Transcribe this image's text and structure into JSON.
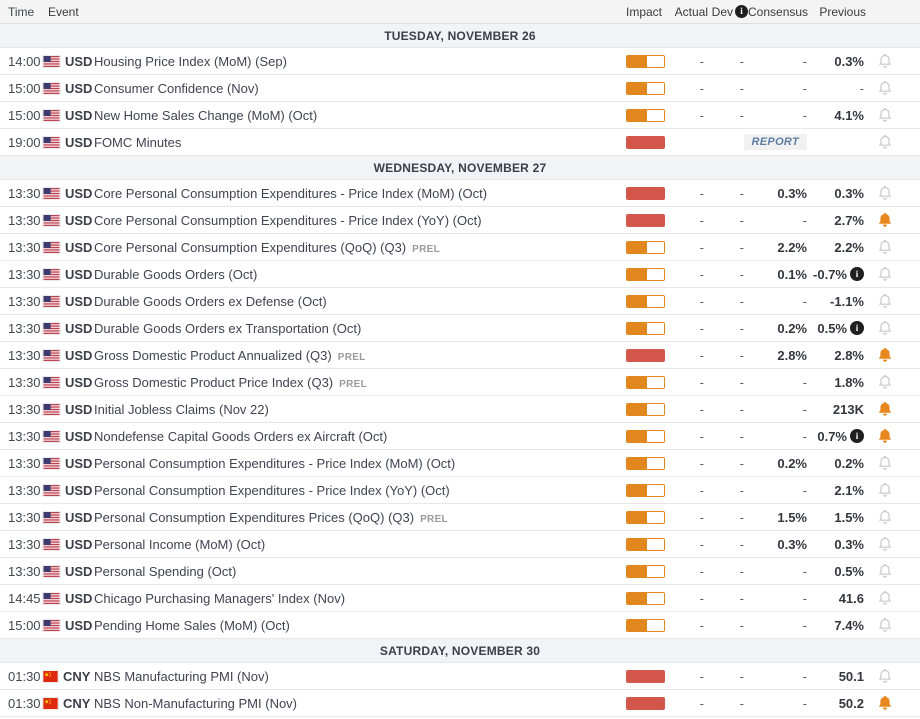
{
  "labels": {
    "report": "REPORT"
  },
  "icons": {
    "info_glyph": "i"
  },
  "colors": {
    "impact_medium": "#E2871D",
    "impact_high": "#D2574A",
    "bell_active": "#E8871E",
    "bell_inactive": "#C9C9C9",
    "section_bg": "#F2F3F6",
    "header_bg": "#F4F4F4",
    "report_color": "#5D7FA3"
  },
  "table": {
    "headers": {
      "time": "Time",
      "event": "Event",
      "impact": "Impact",
      "actual": "Actual",
      "dev": "Dev",
      "consensus": "Consensus",
      "previous": "Previous"
    },
    "sections": [
      {
        "title": "TUESDAY, NOVEMBER 26",
        "rows": [
          {
            "time": "14:00",
            "flag": "us",
            "currency": "USD",
            "event": "Housing Price Index (MoM) (Sep)",
            "suffix": "",
            "impact": "medium",
            "actual": "-",
            "dev": "-",
            "consensus": "-",
            "previous": "0.3%",
            "previous_info": false,
            "bell": "inactive",
            "report": false
          },
          {
            "time": "15:00",
            "flag": "us",
            "currency": "USD",
            "event": "Consumer Confidence (Nov)",
            "suffix": "",
            "impact": "medium",
            "actual": "-",
            "dev": "-",
            "consensus": "-",
            "previous": "-",
            "previous_info": false,
            "bell": "inactive",
            "report": false
          },
          {
            "time": "15:00",
            "flag": "us",
            "currency": "USD",
            "event": "New Home Sales Change (MoM) (Oct)",
            "suffix": "",
            "impact": "medium",
            "actual": "-",
            "dev": "-",
            "consensus": "-",
            "previous": "4.1%",
            "previous_info": false,
            "bell": "inactive",
            "report": false
          },
          {
            "time": "19:00",
            "flag": "us",
            "currency": "USD",
            "event": "FOMC Minutes",
            "suffix": "",
            "impact": "high",
            "actual": "",
            "dev": "",
            "consensus": "",
            "previous": "",
            "previous_info": false,
            "bell": "inactive",
            "report": true
          }
        ]
      },
      {
        "title": "WEDNESDAY, NOVEMBER 27",
        "rows": [
          {
            "time": "13:30",
            "flag": "us",
            "currency": "USD",
            "event": "Core Personal Consumption Expenditures - Price Index (MoM) (Oct)",
            "suffix": "",
            "impact": "high",
            "actual": "-",
            "dev": "-",
            "consensus": "0.3%",
            "previous": "0.3%",
            "previous_info": false,
            "bell": "inactive",
            "report": false
          },
          {
            "time": "13:30",
            "flag": "us",
            "currency": "USD",
            "event": "Core Personal Consumption Expenditures - Price Index (YoY) (Oct)",
            "suffix": "",
            "impact": "high",
            "actual": "-",
            "dev": "-",
            "consensus": "-",
            "previous": "2.7%",
            "previous_info": false,
            "bell": "active",
            "report": false
          },
          {
            "time": "13:30",
            "flag": "us",
            "currency": "USD",
            "event": "Core Personal Consumption Expenditures (QoQ) (Q3)",
            "suffix": "PREL",
            "impact": "medium",
            "actual": "-",
            "dev": "-",
            "consensus": "2.2%",
            "previous": "2.2%",
            "previous_info": false,
            "bell": "inactive",
            "report": false
          },
          {
            "time": "13:30",
            "flag": "us",
            "currency": "USD",
            "event": "Durable Goods Orders (Oct)",
            "suffix": "",
            "impact": "medium",
            "actual": "-",
            "dev": "-",
            "consensus": "0.1%",
            "previous": "-0.7%",
            "previous_info": true,
            "bell": "inactive",
            "report": false
          },
          {
            "time": "13:30",
            "flag": "us",
            "currency": "USD",
            "event": "Durable Goods Orders ex Defense (Oct)",
            "suffix": "",
            "impact": "medium",
            "actual": "-",
            "dev": "-",
            "consensus": "-",
            "previous": "-1.1%",
            "previous_info": false,
            "bell": "inactive",
            "report": false
          },
          {
            "time": "13:30",
            "flag": "us",
            "currency": "USD",
            "event": "Durable Goods Orders ex Transportation (Oct)",
            "suffix": "",
            "impact": "medium",
            "actual": "-",
            "dev": "-",
            "consensus": "0.2%",
            "previous": "0.5%",
            "previous_info": true,
            "bell": "inactive",
            "report": false
          },
          {
            "time": "13:30",
            "flag": "us",
            "currency": "USD",
            "event": "Gross Domestic Product Annualized (Q3)",
            "suffix": "PREL",
            "impact": "high",
            "actual": "-",
            "dev": "-",
            "consensus": "2.8%",
            "previous": "2.8%",
            "previous_info": false,
            "bell": "active",
            "report": false
          },
          {
            "time": "13:30",
            "flag": "us",
            "currency": "USD",
            "event": "Gross Domestic Product Price Index (Q3)",
            "suffix": "PREL",
            "impact": "medium",
            "actual": "-",
            "dev": "-",
            "consensus": "-",
            "previous": "1.8%",
            "previous_info": false,
            "bell": "inactive",
            "report": false
          },
          {
            "time": "13:30",
            "flag": "us",
            "currency": "USD",
            "event": "Initial Jobless Claims (Nov 22)",
            "suffix": "",
            "impact": "medium",
            "actual": "-",
            "dev": "-",
            "consensus": "-",
            "previous": "213K",
            "previous_info": false,
            "bell": "active",
            "report": false
          },
          {
            "time": "13:30",
            "flag": "us",
            "currency": "USD",
            "event": "Nondefense Capital Goods Orders ex Aircraft (Oct)",
            "suffix": "",
            "impact": "medium",
            "actual": "-",
            "dev": "-",
            "consensus": "-",
            "previous": "0.7%",
            "previous_info": true,
            "bell": "active",
            "report": false
          },
          {
            "time": "13:30",
            "flag": "us",
            "currency": "USD",
            "event": "Personal Consumption Expenditures - Price Index (MoM) (Oct)",
            "suffix": "",
            "impact": "medium",
            "actual": "-",
            "dev": "-",
            "consensus": "0.2%",
            "previous": "0.2%",
            "previous_info": false,
            "bell": "inactive",
            "report": false
          },
          {
            "time": "13:30",
            "flag": "us",
            "currency": "USD",
            "event": "Personal Consumption Expenditures - Price Index (YoY) (Oct)",
            "suffix": "",
            "impact": "medium",
            "actual": "-",
            "dev": "-",
            "consensus": "-",
            "previous": "2.1%",
            "previous_info": false,
            "bell": "inactive",
            "report": false
          },
          {
            "time": "13:30",
            "flag": "us",
            "currency": "USD",
            "event": "Personal Consumption Expenditures Prices (QoQ) (Q3)",
            "suffix": "PREL",
            "impact": "medium",
            "actual": "-",
            "dev": "-",
            "consensus": "1.5%",
            "previous": "1.5%",
            "previous_info": false,
            "bell": "inactive",
            "report": false
          },
          {
            "time": "13:30",
            "flag": "us",
            "currency": "USD",
            "event": "Personal Income (MoM) (Oct)",
            "suffix": "",
            "impact": "medium",
            "actual": "-",
            "dev": "-",
            "consensus": "0.3%",
            "previous": "0.3%",
            "previous_info": false,
            "bell": "inactive",
            "report": false
          },
          {
            "time": "13:30",
            "flag": "us",
            "currency": "USD",
            "event": "Personal Spending (Oct)",
            "suffix": "",
            "impact": "medium",
            "actual": "-",
            "dev": "-",
            "consensus": "-",
            "previous": "0.5%",
            "previous_info": false,
            "bell": "inactive",
            "report": false
          },
          {
            "time": "14:45",
            "flag": "us",
            "currency": "USD",
            "event": "Chicago Purchasing Managers' Index (Nov)",
            "suffix": "",
            "impact": "medium",
            "actual": "-",
            "dev": "-",
            "consensus": "-",
            "previous": "41.6",
            "previous_info": false,
            "bell": "inactive",
            "report": false
          },
          {
            "time": "15:00",
            "flag": "us",
            "currency": "USD",
            "event": "Pending Home Sales (MoM) (Oct)",
            "suffix": "",
            "impact": "medium",
            "actual": "-",
            "dev": "-",
            "consensus": "-",
            "previous": "7.4%",
            "previous_info": false,
            "bell": "inactive",
            "report": false
          }
        ]
      },
      {
        "title": "SATURDAY, NOVEMBER 30",
        "rows": [
          {
            "time": "01:30",
            "flag": "cn",
            "currency": "CNY",
            "event": "NBS Manufacturing PMI (Nov)",
            "suffix": "",
            "impact": "high",
            "actual": "-",
            "dev": "-",
            "consensus": "-",
            "previous": "50.1",
            "previous_info": false,
            "bell": "inactive",
            "report": false
          },
          {
            "time": "01:30",
            "flag": "cn",
            "currency": "CNY",
            "event": "NBS Non-Manufacturing PMI (Nov)",
            "suffix": "",
            "impact": "high",
            "actual": "-",
            "dev": "-",
            "consensus": "-",
            "previous": "50.2",
            "previous_info": false,
            "bell": "active",
            "report": false
          }
        ]
      }
    ]
  }
}
